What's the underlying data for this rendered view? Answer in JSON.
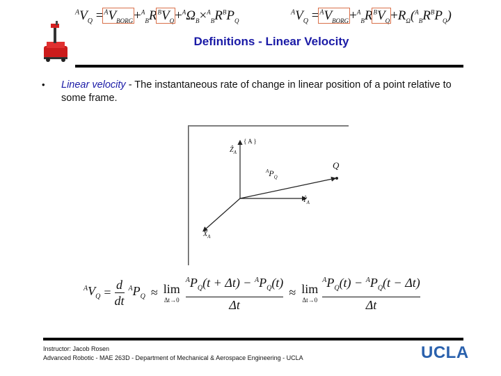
{
  "slide": {
    "title": "Definitions - Linear Velocity",
    "bullet": {
      "term": "Linear velocity",
      "text": " - The instantaneous rate of change in linear position of a point relative to some frame."
    }
  },
  "header_equations": {
    "eq1_lhs": "V",
    "eq1_borg": "BORG",
    "eq1_omega_cross": "Ω",
    "eq2_lhs": "V",
    "eq2_borg": "BORG"
  },
  "figure": {
    "frame_label": "{ A }",
    "z_label": "Ẑ",
    "y_label": "Ŷ",
    "x_label": "X̂",
    "axis_subscript": "A",
    "point_label": "Q",
    "vector_label": "P",
    "vector_pre": "A",
    "vector_sub": "Q"
  },
  "equation": {
    "lim": "lim",
    "limit_sub": "Δt→0",
    "dt": "Δt",
    "d": "d",
    "ddt": "dt"
  },
  "footer": {
    "line1": "Instructor: Jacob Rosen",
    "line2": "Advanced Robotic - MAE 263D - Department of Mechanical & Aerospace Engineering - UCLA"
  },
  "logo": {
    "text": "UCLA"
  },
  "colors": {
    "title": "#1a1aa6",
    "logo": "#2a61ad",
    "box_outline": "#d9704a",
    "robot": "#d42020"
  }
}
